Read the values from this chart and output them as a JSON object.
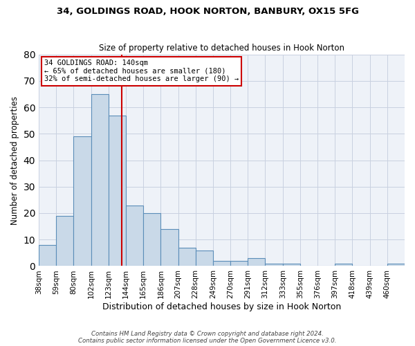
{
  "title1": "34, GOLDINGS ROAD, HOOK NORTON, BANBURY, OX15 5FG",
  "title2": "Size of property relative to detached houses in Hook Norton",
  "xlabel": "Distribution of detached houses by size in Hook Norton",
  "ylabel": "Number of detached properties",
  "bar_values": [
    8,
    19,
    49,
    65,
    57,
    23,
    20,
    14,
    7,
    6,
    2,
    2,
    3,
    1,
    1,
    0,
    0,
    1,
    0,
    0,
    1
  ],
  "bar_labels": [
    "38sqm",
    "59sqm",
    "80sqm",
    "102sqm",
    "123sqm",
    "144sqm",
    "165sqm",
    "186sqm",
    "207sqm",
    "228sqm",
    "249sqm",
    "270sqm",
    "291sqm",
    "312sqm",
    "333sqm",
    "355sqm",
    "376sqm",
    "397sqm",
    "418sqm",
    "439sqm",
    "460sqm"
  ],
  "bar_color": "#c9d9e8",
  "bar_edge_color": "#5b8db8",
  "grid_color": "#c8d0e0",
  "bg_color": "#eef2f8",
  "annotation_line1": "34 GOLDINGS ROAD: 140sqm",
  "annotation_line2": "← 65% of detached houses are smaller (180)",
  "annotation_line3": "32% of semi-detached houses are larger (90) →",
  "vline_x": 4.76,
  "vline_color": "#cc0000",
  "box_color": "#cc0000",
  "ylim": [
    0,
    80
  ],
  "yticks": [
    0,
    10,
    20,
    30,
    40,
    50,
    60,
    70,
    80
  ],
  "footer1": "Contains HM Land Registry data © Crown copyright and database right 2024.",
  "footer2": "Contains public sector information licensed under the Open Government Licence v3.0."
}
